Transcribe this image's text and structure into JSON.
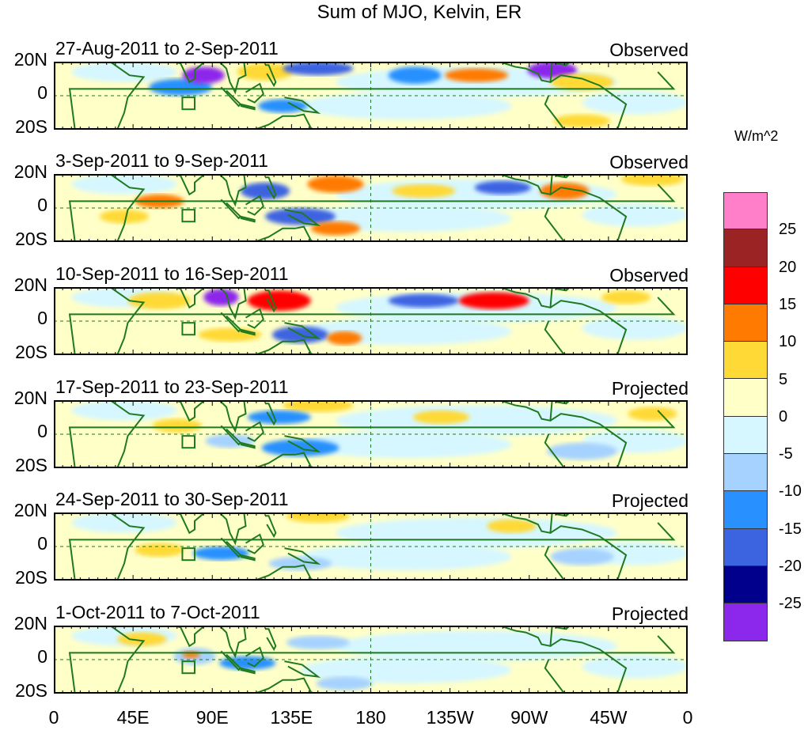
{
  "title": "Sum of MJO, Kelvin, ER",
  "units": "W/m^2",
  "lat_labels": [
    "20N",
    "0",
    "20S"
  ],
  "lon_labels": [
    "0",
    "45E",
    "90E",
    "135E",
    "180",
    "135W",
    "90W",
    "45W",
    "0"
  ],
  "panels": [
    {
      "label": "27-Aug-2011 to 2-Sep-2011",
      "kind": "Observed"
    },
    {
      "label": "3-Sep-2011 to 9-Sep-2011",
      "kind": "Observed"
    },
    {
      "label": "10-Sep-2011 to 16-Sep-2011",
      "kind": "Observed"
    },
    {
      "label": "17-Sep-2011 to 23-Sep-2011",
      "kind": "Projected"
    },
    {
      "label": "24-Sep-2011 to 30-Sep-2011",
      "kind": "Projected"
    },
    {
      "label": "1-Oct-2011 to 7-Oct-2011",
      "kind": "Projected"
    }
  ],
  "colorbar": {
    "colors": [
      "#ff7fc8",
      "#9b2323",
      "#ff0000",
      "#ff7a00",
      "#ffd935",
      "#ffffc8",
      "#d6f7ff",
      "#a6d2ff",
      "#2890ff",
      "#3c64e1",
      "#00008c",
      "#8c28eb"
    ],
    "tick_labels": [
      "25",
      "20",
      "15",
      "10",
      "5",
      "0",
      "-5",
      "-10",
      "-15",
      "-20",
      "-25"
    ]
  },
  "colors": {
    "coastline": "#1f7a1f",
    "panel_background": "#ffffc8"
  },
  "anomalies": [
    [
      {
        "lon": 72,
        "lat": 5,
        "rx": 18,
        "ry": 5,
        "level": "-10"
      },
      {
        "lon": 85,
        "lat": 12,
        "rx": 12,
        "ry": 5,
        "level": "-25"
      },
      {
        "lon": 120,
        "lat": 14,
        "rx": 16,
        "ry": 5,
        "level": "10"
      },
      {
        "lon": 150,
        "lat": 16,
        "rx": 20,
        "ry": 4,
        "level": "-15"
      },
      {
        "lon": 205,
        "lat": 12,
        "rx": 15,
        "ry": 5,
        "level": "-10"
      },
      {
        "lon": 240,
        "lat": 12,
        "rx": 18,
        "ry": 4,
        "level": "15"
      },
      {
        "lon": 283,
        "lat": 15,
        "rx": 14,
        "ry": 5,
        "level": "-25"
      },
      {
        "lon": 300,
        "lat": 8,
        "rx": 18,
        "ry": 5,
        "level": "10"
      },
      {
        "lon": 130,
        "lat": -6,
        "rx": 14,
        "ry": 4,
        "level": "-10"
      },
      {
        "lon": 300,
        "lat": -15,
        "rx": 16,
        "ry": 4,
        "level": "10"
      }
    ],
    [
      {
        "lon": 60,
        "lat": 4,
        "rx": 14,
        "ry": 4,
        "level": "15"
      },
      {
        "lon": 120,
        "lat": 10,
        "rx": 14,
        "ry": 5,
        "level": "-15"
      },
      {
        "lon": 160,
        "lat": 14,
        "rx": 16,
        "ry": 5,
        "level": "15"
      },
      {
        "lon": 210,
        "lat": 10,
        "rx": 18,
        "ry": 4,
        "level": "10"
      },
      {
        "lon": 255,
        "lat": 12,
        "rx": 16,
        "ry": 4,
        "level": "-15"
      },
      {
        "lon": 290,
        "lat": 10,
        "rx": 14,
        "ry": 5,
        "level": "15"
      },
      {
        "lon": 340,
        "lat": 17,
        "rx": 18,
        "ry": 4,
        "level": "10"
      },
      {
        "lon": 140,
        "lat": -5,
        "rx": 20,
        "ry": 5,
        "level": "-15"
      },
      {
        "lon": 160,
        "lat": -12,
        "rx": 14,
        "ry": 4,
        "level": "15"
      },
      {
        "lon": 40,
        "lat": -5,
        "rx": 14,
        "ry": 4,
        "level": "10"
      }
    ],
    [
      {
        "lon": 60,
        "lat": 12,
        "rx": 18,
        "ry": 5,
        "level": "10"
      },
      {
        "lon": 95,
        "lat": 14,
        "rx": 10,
        "ry": 5,
        "level": "-25"
      },
      {
        "lon": 128,
        "lat": 12,
        "rx": 18,
        "ry": 6,
        "level": "20"
      },
      {
        "lon": 210,
        "lat": 12,
        "rx": 20,
        "ry": 4,
        "level": "-15"
      },
      {
        "lon": 250,
        "lat": 12,
        "rx": 20,
        "ry": 5,
        "level": "20"
      },
      {
        "lon": 325,
        "lat": 14,
        "rx": 14,
        "ry": 4,
        "level": "10"
      },
      {
        "lon": 100,
        "lat": -8,
        "rx": 18,
        "ry": 4,
        "level": "10"
      },
      {
        "lon": 140,
        "lat": -8,
        "rx": 16,
        "ry": 5,
        "level": "-15"
      },
      {
        "lon": 165,
        "lat": -10,
        "rx": 10,
        "ry": 4,
        "level": "15"
      }
    ],
    [
      {
        "lon": 150,
        "lat": 17,
        "rx": 20,
        "ry": 4,
        "level": "10"
      },
      {
        "lon": 128,
        "lat": 10,
        "rx": 18,
        "ry": 4,
        "level": "-10"
      },
      {
        "lon": 70,
        "lat": 5,
        "rx": 14,
        "ry": 4,
        "level": "5"
      },
      {
        "lon": 140,
        "lat": -8,
        "rx": 22,
        "ry": 5,
        "level": "-10"
      },
      {
        "lon": 100,
        "lat": -4,
        "rx": 14,
        "ry": 4,
        "level": "-5"
      },
      {
        "lon": 300,
        "lat": -10,
        "rx": 20,
        "ry": 5,
        "level": "-5"
      },
      {
        "lon": 340,
        "lat": 12,
        "rx": 14,
        "ry": 4,
        "level": "5"
      },
      {
        "lon": 220,
        "lat": 10,
        "rx": 16,
        "ry": 4,
        "level": "5"
      }
    ],
    [
      {
        "lon": 150,
        "lat": 18,
        "rx": 18,
        "ry": 4,
        "level": "10"
      },
      {
        "lon": 95,
        "lat": -4,
        "rx": 16,
        "ry": 4,
        "level": "-10"
      },
      {
        "lon": 140,
        "lat": -10,
        "rx": 18,
        "ry": 4,
        "level": "-5"
      },
      {
        "lon": 60,
        "lat": -2,
        "rx": 14,
        "ry": 4,
        "level": "5"
      },
      {
        "lon": 260,
        "lat": 12,
        "rx": 14,
        "ry": 4,
        "level": "5"
      },
      {
        "lon": 300,
        "lat": -6,
        "rx": 18,
        "ry": 5,
        "level": "-5"
      }
    ],
    [
      {
        "lon": 80,
        "lat": 2,
        "rx": 12,
        "ry": 5,
        "level": "-5"
      },
      {
        "lon": 78,
        "lat": 3,
        "rx": 5,
        "ry": 2,
        "level": "15"
      },
      {
        "lon": 110,
        "lat": -2,
        "rx": 16,
        "ry": 4,
        "level": "-10"
      },
      {
        "lon": 150,
        "lat": 10,
        "rx": 18,
        "ry": 4,
        "level": "-5"
      },
      {
        "lon": 50,
        "lat": 12,
        "rx": 14,
        "ry": 4,
        "level": "5"
      },
      {
        "lon": 165,
        "lat": -14,
        "rx": 16,
        "ry": 4,
        "level": "-5"
      }
    ]
  ]
}
